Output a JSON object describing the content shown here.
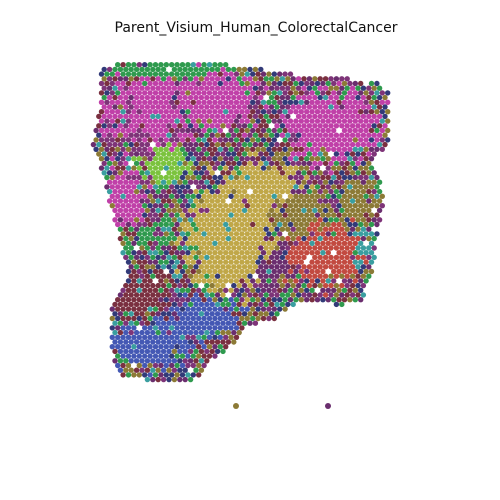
{
  "title": "Parent_Visium_Human_ColorectalCancer",
  "colors": {
    "background": "#ffffff",
    "magenta": "#c040a8",
    "magenta_dark": "#7e3478",
    "gold": "#c0a748",
    "olive": "#8c7a36",
    "green": "#2f9a4e",
    "lime": "#7bc33e",
    "blue": "#4458b4",
    "navy": "#323a78",
    "red": "#c24a40",
    "teal": "#3a9ea0",
    "plum": "#6a2e6e",
    "maroon": "#7a3040"
  }
}
